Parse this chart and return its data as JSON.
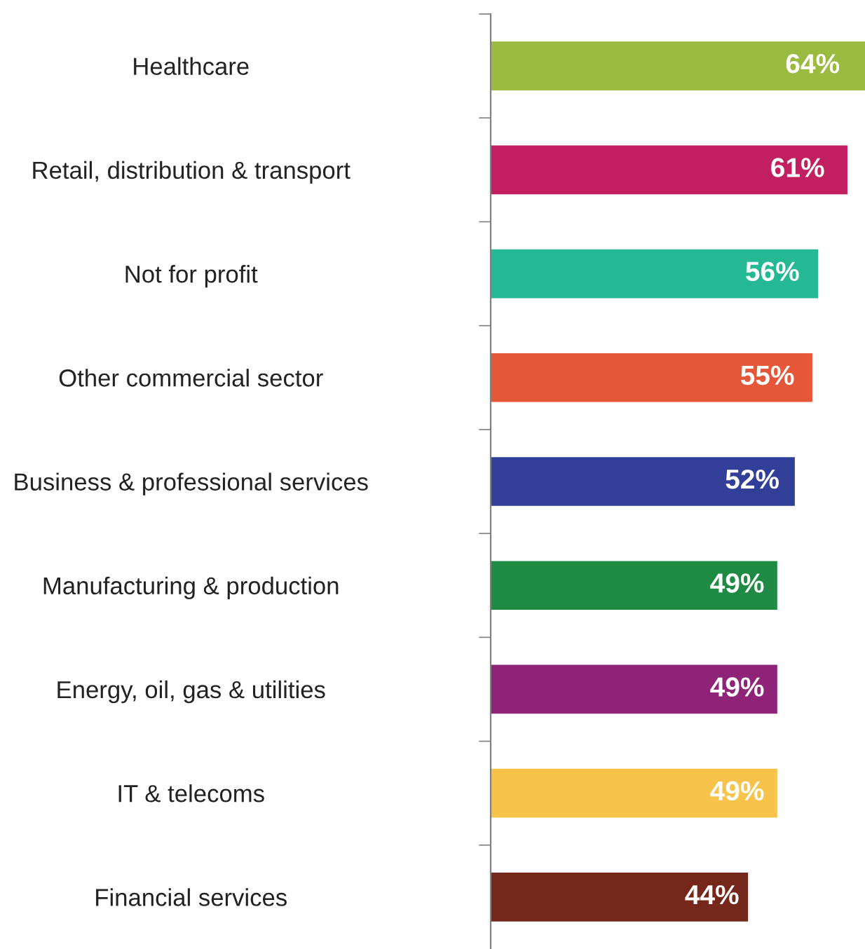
{
  "chart_data": {
    "type": "bar",
    "orientation": "horizontal",
    "data_labels": true,
    "categories": [
      "Healthcare",
      "Retail, distribution & transport",
      "Not for profit",
      "Other commercial sector",
      "Business & professional services",
      "Manufacturing & production",
      "Energy, oil, gas & utilities",
      "IT & telecoms",
      "Financial services"
    ],
    "values": [
      64,
      61,
      56,
      55,
      52,
      49,
      49,
      49,
      44
    ],
    "value_labels": [
      "64%",
      "61%",
      "56%",
      "55%",
      "52%",
      "49%",
      "49%",
      "49%",
      "44%"
    ],
    "colors": [
      "#9bbb40",
      "#c11f5f",
      "#24b994",
      "#e65638",
      "#323f98",
      "#1f8a43",
      "#8f2377",
      "#f8c34a",
      "#76271c"
    ],
    "grid": false,
    "legend": false
  }
}
